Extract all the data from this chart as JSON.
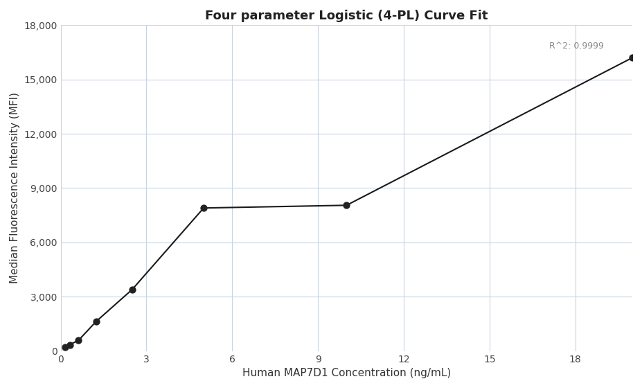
{
  "title": "Four parameter Logistic (4-PL) Curve Fit",
  "xlabel": "Human MAP7D1 Concentration (ng/mL)",
  "ylabel": "Median Fluorescence Intensity (MFI)",
  "points_x": [
    0.156,
    0.313,
    0.625,
    1.25,
    2.5,
    5.0,
    10.0,
    20.0
  ],
  "points_y": [
    200,
    350,
    600,
    1650,
    3400,
    7900,
    8050,
    16200
  ],
  "r_squared": "R^2: 0.9999",
  "xlim": [
    0,
    20
  ],
  "ylim": [
    0,
    18000
  ],
  "xticks": [
    0,
    3,
    6,
    9,
    12,
    15,
    18
  ],
  "yticks": [
    0,
    3000,
    6000,
    9000,
    12000,
    15000,
    18000
  ],
  "line_color": "#1a1a1a",
  "dot_color": "#222222",
  "dot_size": 55,
  "line_width": 1.5,
  "background_color": "#ffffff",
  "grid_color": "#c8d4e0",
  "title_fontsize": 13,
  "label_fontsize": 11,
  "tick_fontsize": 10,
  "annotation_fontsize": 9,
  "annotation_color": "#888888"
}
